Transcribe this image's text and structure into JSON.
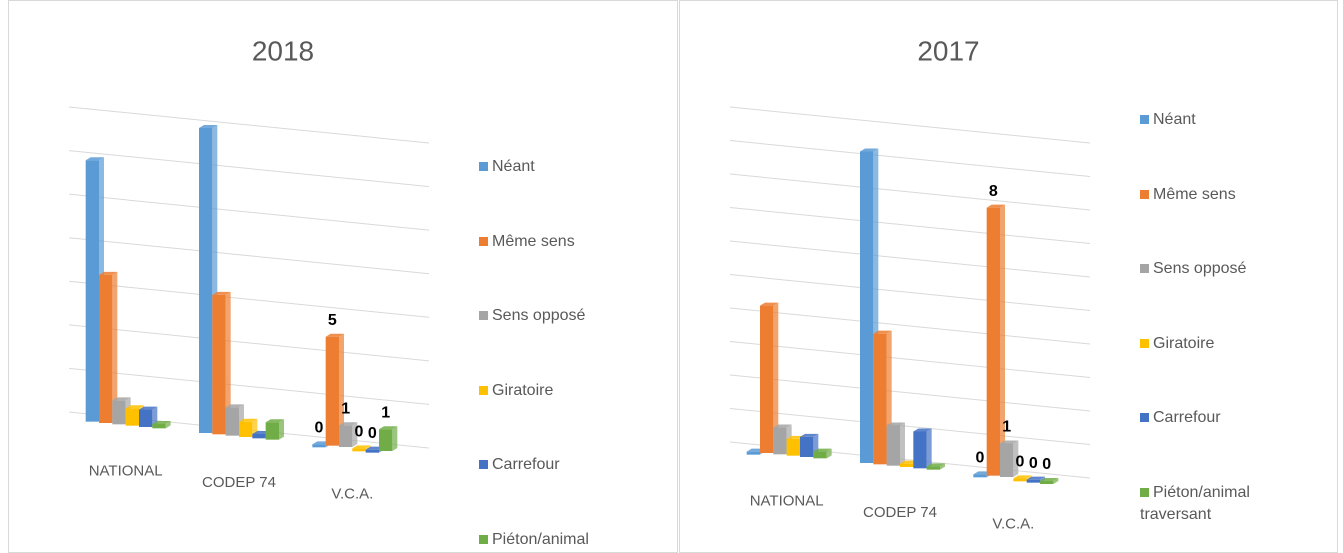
{
  "chart_data": [
    {
      "type": "bar",
      "title": "2018",
      "categories": [
        "NATIONAL",
        "CODEP 74",
        "V.C.A."
      ],
      "series": [
        {
          "name": "Néant",
          "color": "#5b9bd5",
          "values": [
            12,
            14,
            0
          ]
        },
        {
          "name": "Même sens",
          "color": "#ed7d31",
          "values": [
            6.8,
            6.4,
            5
          ]
        },
        {
          "name": "Sens opposé",
          "color": "#a5a5a5",
          "values": [
            1.1,
            1.3,
            1
          ]
        },
        {
          "name": "Giratoire",
          "color": "#ffc000",
          "values": [
            0.8,
            0.7,
            0
          ]
        },
        {
          "name": "Carrefour",
          "color": "#4472c4",
          "values": [
            0.8,
            0.2,
            0
          ]
        },
        {
          "name": "Piéton/animal traversant",
          "color": "#70ad47",
          "values": [
            0.2,
            0.8,
            1
          ]
        }
      ],
      "ylim": [
        0,
        14
      ],
      "yticks": [
        0,
        2,
        4,
        6,
        8,
        10,
        12,
        14
      ],
      "grid": true,
      "data_labels_at": 2
    },
    {
      "type": "bar",
      "title": "2017",
      "categories": [
        "NATIONAL",
        "CODEP 74",
        "V.C.A."
      ],
      "series": [
        {
          "name": "Néant",
          "color": "#5b9bd5",
          "values": [
            0,
            9.3,
            0
          ]
        },
        {
          "name": "Même sens",
          "color": "#ed7d31",
          "values": [
            4.4,
            3.9,
            8
          ]
        },
        {
          "name": "Sens opposé",
          "color": "#a5a5a5",
          "values": [
            0.8,
            1.2,
            1
          ]
        },
        {
          "name": "Giratoire",
          "color": "#ffc000",
          "values": [
            0.5,
            0.1,
            0
          ]
        },
        {
          "name": "Carrefour",
          "color": "#4472c4",
          "values": [
            0.6,
            1.1,
            0
          ]
        },
        {
          "name": "Piéton/animal traversant",
          "color": "#70ad47",
          "values": [
            0.2,
            0.1,
            0
          ]
        }
      ],
      "ylim": [
        0,
        10
      ],
      "yticks": [
        0,
        1,
        2,
        3,
        4,
        5,
        6,
        7,
        8,
        9,
        10
      ],
      "grid": true,
      "data_labels_at": 2
    }
  ]
}
